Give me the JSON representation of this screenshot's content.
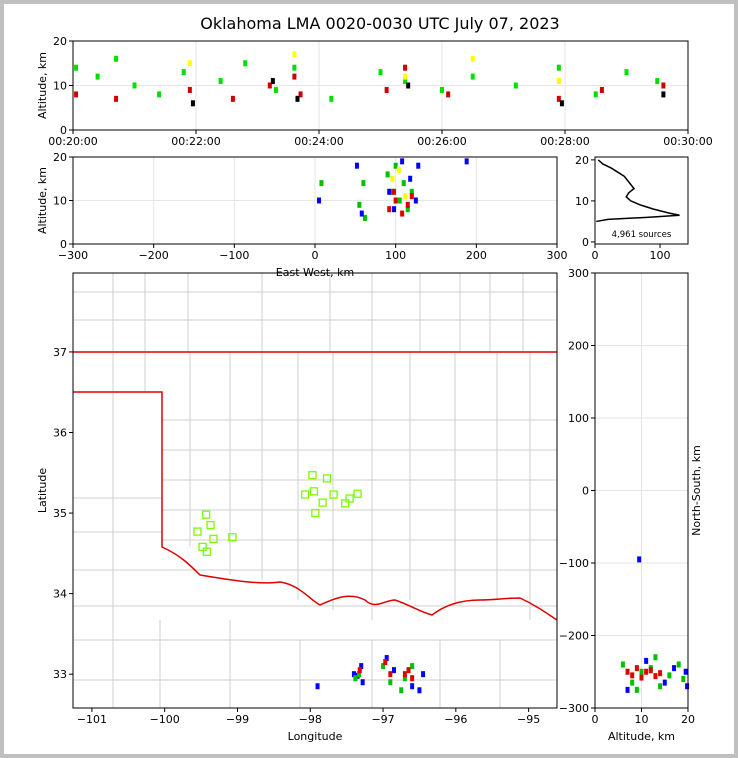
{
  "title": "Oklahoma LMA 0020-0030 UTC July 07, 2023",
  "chart_data": [
    {
      "type": "scatter",
      "ylabel": "Altitude, km",
      "xlim": [
        0,
        10
      ],
      "ylim": [
        0,
        20
      ],
      "grid": true,
      "xticks": [
        {
          "value": 0,
          "label": "00:20:00"
        },
        {
          "value": 2,
          "label": "00:22:00"
        },
        {
          "value": 4,
          "label": "00:24:00"
        },
        {
          "value": 6,
          "label": "00:26:00"
        },
        {
          "value": 8,
          "label": "00:28:00"
        },
        {
          "value": 10,
          "label": "00:30:00"
        }
      ],
      "yticks": [
        0,
        10,
        20
      ],
      "series": [
        {
          "color": "#00e000",
          "x": [
            0.05,
            0.4,
            0.7,
            1.0,
            1.4,
            1.8,
            2.4,
            2.8,
            3.3,
            3.6,
            4.2,
            5.0,
            5.4,
            6.0,
            6.5,
            7.2,
            7.9,
            8.5,
            9.0,
            9.5
          ],
          "y": [
            14,
            12,
            16,
            10,
            8,
            13,
            11,
            15,
            9,
            14,
            7,
            13,
            11,
            9,
            12,
            10,
            14,
            8,
            13,
            11
          ]
        },
        {
          "color": "#ffff00",
          "x": [
            1.9,
            3.6,
            5.4,
            6.5,
            7.9
          ],
          "y": [
            15,
            17,
            12,
            16,
            11
          ]
        },
        {
          "color": "#d00000",
          "x": [
            0.05,
            0.7,
            1.9,
            2.6,
            3.2,
            3.6,
            3.7,
            5.1,
            5.4,
            6.1,
            7.9,
            8.6,
            9.6
          ],
          "y": [
            8,
            7,
            9,
            7,
            10,
            12,
            8,
            9,
            14,
            8,
            7,
            9,
            10
          ]
        },
        {
          "color": "#000000",
          "x": [
            1.95,
            3.25,
            3.65,
            5.45,
            7.95,
            9.6
          ],
          "y": [
            6,
            11,
            7,
            10,
            6,
            8
          ]
        }
      ]
    },
    {
      "type": "scatter",
      "ylabel": "Altitude, km",
      "xlabel": "East-West, km",
      "xlim": [
        -300,
        300
      ],
      "ylim": [
        0,
        20
      ],
      "grid": true,
      "xticks": [
        {
          "value": -300,
          "label": "−300"
        },
        {
          "value": -200,
          "label": "−200"
        },
        {
          "value": -100,
          "label": "−100"
        },
        0,
        100,
        200,
        300
      ],
      "yticks": [
        0,
        10,
        20
      ],
      "series": [
        {
          "color": "#00c000",
          "x": [
            55,
            60,
            62,
            90,
            95,
            100,
            105,
            110,
            115,
            120,
            8
          ],
          "y": [
            9,
            14,
            6,
            16,
            12,
            18,
            10,
            14,
            8,
            12,
            14
          ]
        },
        {
          "color": "#0000ff",
          "x": [
            52,
            58,
            92,
            98,
            108,
            118,
            125,
            128,
            188,
            5
          ],
          "y": [
            18,
            7,
            12,
            8,
            19,
            15,
            10,
            18,
            19,
            10
          ]
        },
        {
          "color": "#ffff00",
          "x": [
            96,
            112,
            104
          ],
          "y": [
            15,
            11,
            17
          ]
        },
        {
          "color": "#e00000",
          "x": [
            92,
            100,
            108,
            115,
            98,
            120
          ],
          "y": [
            8,
            10,
            7,
            9,
            12,
            11
          ]
        }
      ]
    },
    {
      "type": "line",
      "xlim": [
        0,
        143
      ],
      "ylim": [
        -0.5,
        20.7
      ],
      "annotation": "4,961 sources",
      "xticks": [
        0,
        100
      ],
      "yticks": [
        0,
        10,
        20
      ],
      "series": [
        {
          "color": "#000000",
          "x": [
            5,
            12,
            25,
            35,
            45,
            50,
            55,
            60,
            52,
            48,
            55,
            70,
            90,
            115,
            130,
            80,
            20,
            2
          ],
          "y": [
            20,
            19,
            18,
            17,
            16,
            15,
            14,
            13,
            12,
            11,
            10,
            9,
            8,
            7,
            6.5,
            6,
            5.5,
            5
          ]
        }
      ]
    },
    {
      "type": "scatter",
      "ylabel": "Latitude",
      "xlabel": "Longitude",
      "xlim": [
        -101.26,
        -94.61
      ],
      "ylim": [
        32.58,
        37.98
      ],
      "xticks": [
        {
          "value": -101,
          "label": "−101"
        },
        {
          "value": -100,
          "label": "−100"
        },
        {
          "value": -99,
          "label": "−99"
        },
        {
          "value": -98,
          "label": "−98"
        },
        {
          "value": -97,
          "label": "−97"
        },
        {
          "value": -96,
          "label": "−96"
        },
        {
          "value": -95,
          "label": "−95"
        }
      ],
      "yticks": [
        33,
        34,
        35,
        36,
        37
      ],
      "series": [
        {
          "color": "#7cfc00",
          "marker": "square",
          "x": [
            -97.97,
            -97.77,
            -98.07,
            -97.95,
            -97.83,
            -97.68,
            -97.52,
            -97.35,
            -97.93,
            -99.43,
            -99.55,
            -99.37,
            -99.33,
            -99.07,
            -99.48,
            -99.42,
            -97.46
          ],
          "y": [
            35.47,
            35.43,
            35.23,
            35.27,
            35.13,
            35.23,
            35.12,
            35.24,
            35.0,
            34.98,
            34.77,
            34.85,
            34.68,
            34.7,
            34.58,
            34.52,
            35.18
          ]
        },
        {
          "color": "#0000ff",
          "x": [
            -97.35,
            -97.3,
            -97.28,
            -97.4,
            -96.95,
            -96.85,
            -96.6,
            -96.45,
            -96.5,
            -97.9
          ],
          "y": [
            32.98,
            33.1,
            32.9,
            33.0,
            33.2,
            33.05,
            32.85,
            33.0,
            32.8,
            32.85
          ]
        },
        {
          "color": "#00c000",
          "x": [
            -97.33,
            -97.0,
            -96.9,
            -96.7,
            -96.6,
            -96.75,
            -97.38
          ],
          "y": [
            33.0,
            33.1,
            32.9,
            32.95,
            33.1,
            32.8,
            32.95
          ]
        },
        {
          "color": "#e00000",
          "x": [
            -97.32,
            -96.97,
            -96.9,
            -96.65,
            -96.6,
            -96.7
          ],
          "y": [
            33.05,
            33.15,
            33.0,
            33.05,
            32.95,
            33.0
          ]
        }
      ]
    },
    {
      "type": "scatter",
      "ylabel": "North-South, km",
      "xlabel": "Altitude, km",
      "xlim": [
        0,
        20
      ],
      "ylim": [
        -300,
        300
      ],
      "grid": true,
      "xticks": [
        0,
        10,
        20
      ],
      "yticks": [
        {
          "value": -300,
          "label": "−300"
        },
        {
          "value": -200,
          "label": "−200"
        },
        {
          "value": -100,
          "label": "−100"
        },
        0,
        100,
        200,
        300
      ],
      "series": [
        {
          "color": "#00c000",
          "x": [
            6,
            8,
            10,
            12,
            14,
            16,
            18,
            19,
            9,
            13
          ],
          "y": [
            -240,
            -265,
            -250,
            -245,
            -270,
            -255,
            -240,
            -260,
            -275,
            -230
          ]
        },
        {
          "color": "#0000ff",
          "x": [
            7,
            11,
            15,
            17,
            19.5,
            9.5,
            19.8
          ],
          "y": [
            -275,
            -235,
            -265,
            -245,
            -250,
            -95,
            -270
          ]
        },
        {
          "color": "#e00000",
          "x": [
            7,
            8,
            9,
            10,
            11,
            12,
            13,
            14
          ],
          "y": [
            -250,
            -255,
            -245,
            -258,
            -250,
            -248,
            -256,
            -252
          ]
        }
      ]
    }
  ]
}
